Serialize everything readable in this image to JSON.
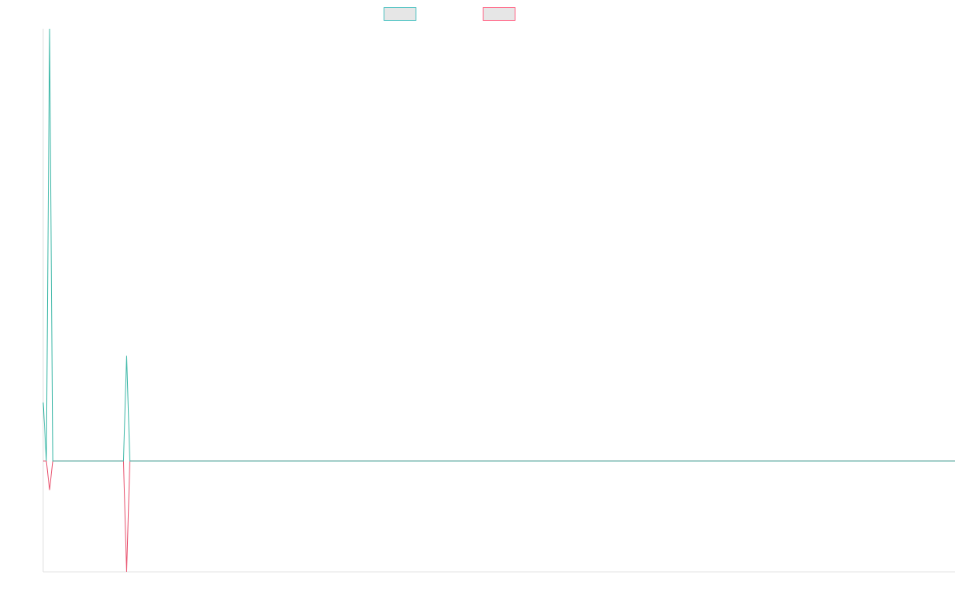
{
  "chart_data": {
    "type": "line",
    "title": "",
    "xlabel": "",
    "ylabel": "",
    "legend_position": "top-center",
    "grid": false,
    "x_count": 285,
    "ylim": [
      -38,
      148
    ],
    "series": [
      {
        "name": "",
        "color": "#4bc0c0",
        "line_color": "#3fb8a8",
        "points": [
          [
            0,
            20
          ],
          [
            1,
            0
          ],
          [
            2,
            148
          ],
          [
            3,
            0
          ],
          [
            25,
            0
          ],
          [
            26,
            36
          ],
          [
            27,
            0
          ],
          [
            284,
            0
          ]
        ]
      },
      {
        "name": "",
        "color": "#ff6384",
        "line_color": "#e8536f",
        "points": [
          [
            0,
            0
          ],
          [
            1,
            0
          ],
          [
            2,
            -10
          ],
          [
            3,
            0
          ],
          [
            25,
            0
          ],
          [
            26,
            -38
          ],
          [
            27,
            0
          ],
          [
            284,
            0
          ]
        ]
      }
    ]
  }
}
